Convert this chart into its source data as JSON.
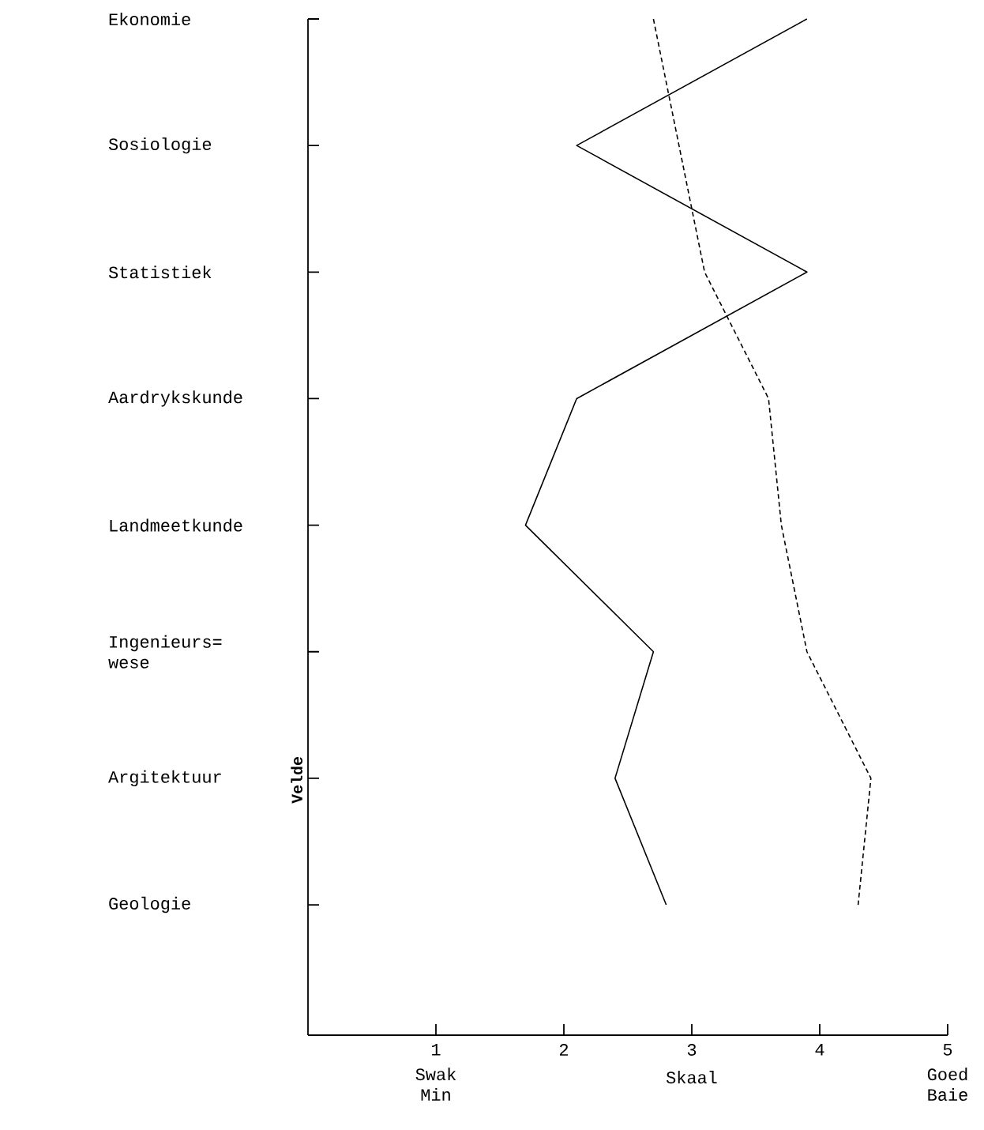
{
  "chart_data": {
    "type": "line",
    "orientation": "horizontal",
    "xlabel": "Skaal",
    "ylabel": "Velde",
    "categories": [
      "Ekonomie",
      "Sosiologie",
      "Statistiek",
      "Aardrykskunde",
      "Landmeetkunde",
      "Ingenieurs= wese",
      "Argitektuur",
      "Geologie"
    ],
    "xlim": [
      0,
      5
    ],
    "xticks": [
      1,
      2,
      3,
      4,
      5
    ],
    "annotations": [
      "Swak Min",
      "Goed Baie"
    ],
    "series": [
      {
        "color": "#000000",
        "line_style": "solid",
        "values": [
          3.9,
          2.1,
          3.9,
          2.1,
          1.7,
          2.7,
          2.4,
          2.8
        ]
      },
      {
        "color": "#000000",
        "line_style": "dashed",
        "values": [
          2.7,
          2.9,
          3.1,
          3.6,
          3.7,
          3.9,
          4.4,
          4.3
        ]
      }
    ]
  }
}
